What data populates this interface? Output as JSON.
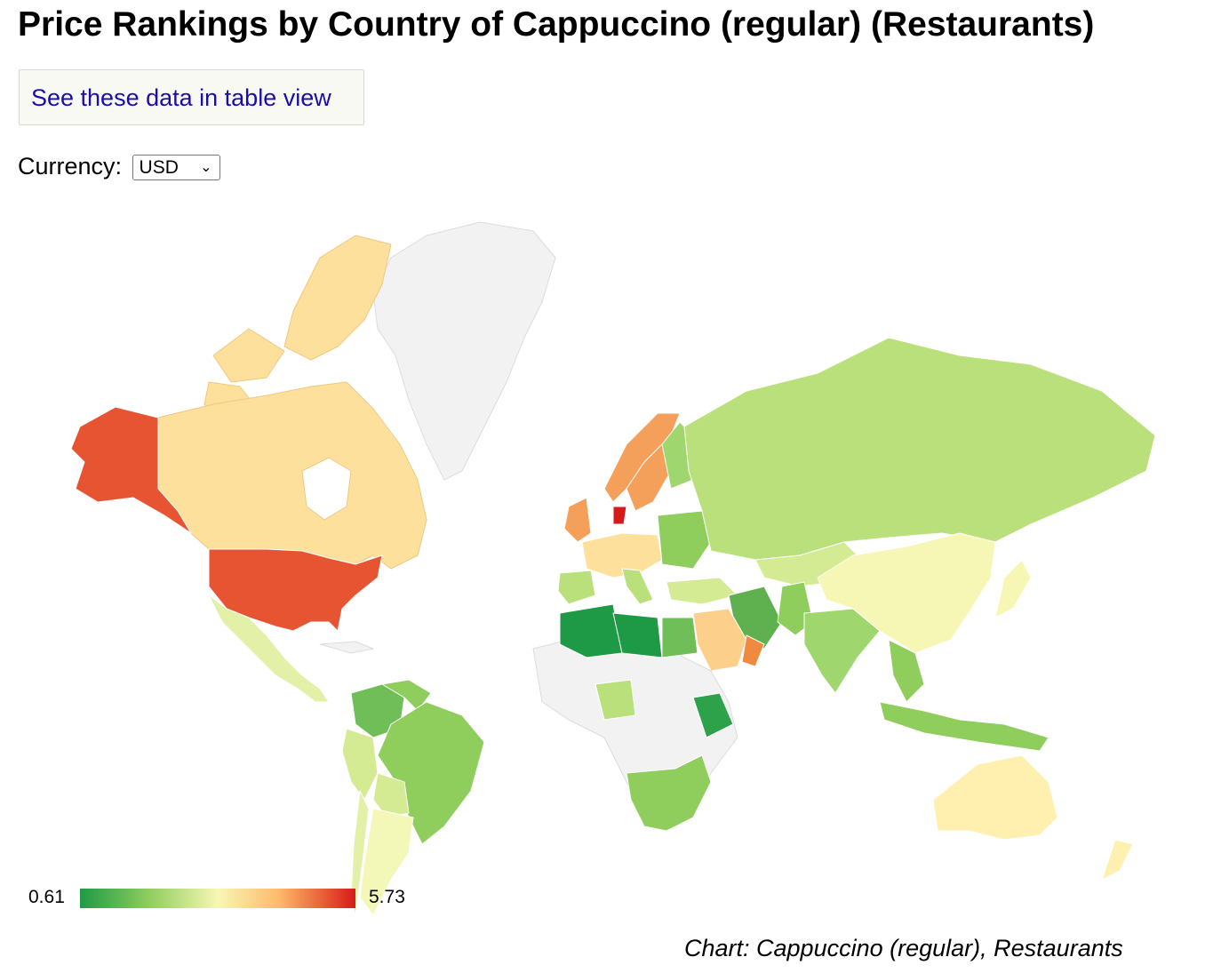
{
  "title": "Price Rankings by Country of Cappuccino (regular) (Restaurants)",
  "table_view_link": "See these data in table view",
  "currency": {
    "label": "Currency:",
    "selected": "USD"
  },
  "legend": {
    "min": "0.61",
    "max": "5.73"
  },
  "caption": "Chart: Cappuccino (regular), Restaurants",
  "colors": {
    "low": "#1e9a46",
    "mid_low": "#8fcd5d",
    "mid": "#f7f7b5",
    "mid_high": "#fdbb6b",
    "high": "#e65432",
    "max": "#d7191c",
    "no_data": "#f2f2f2"
  }
}
